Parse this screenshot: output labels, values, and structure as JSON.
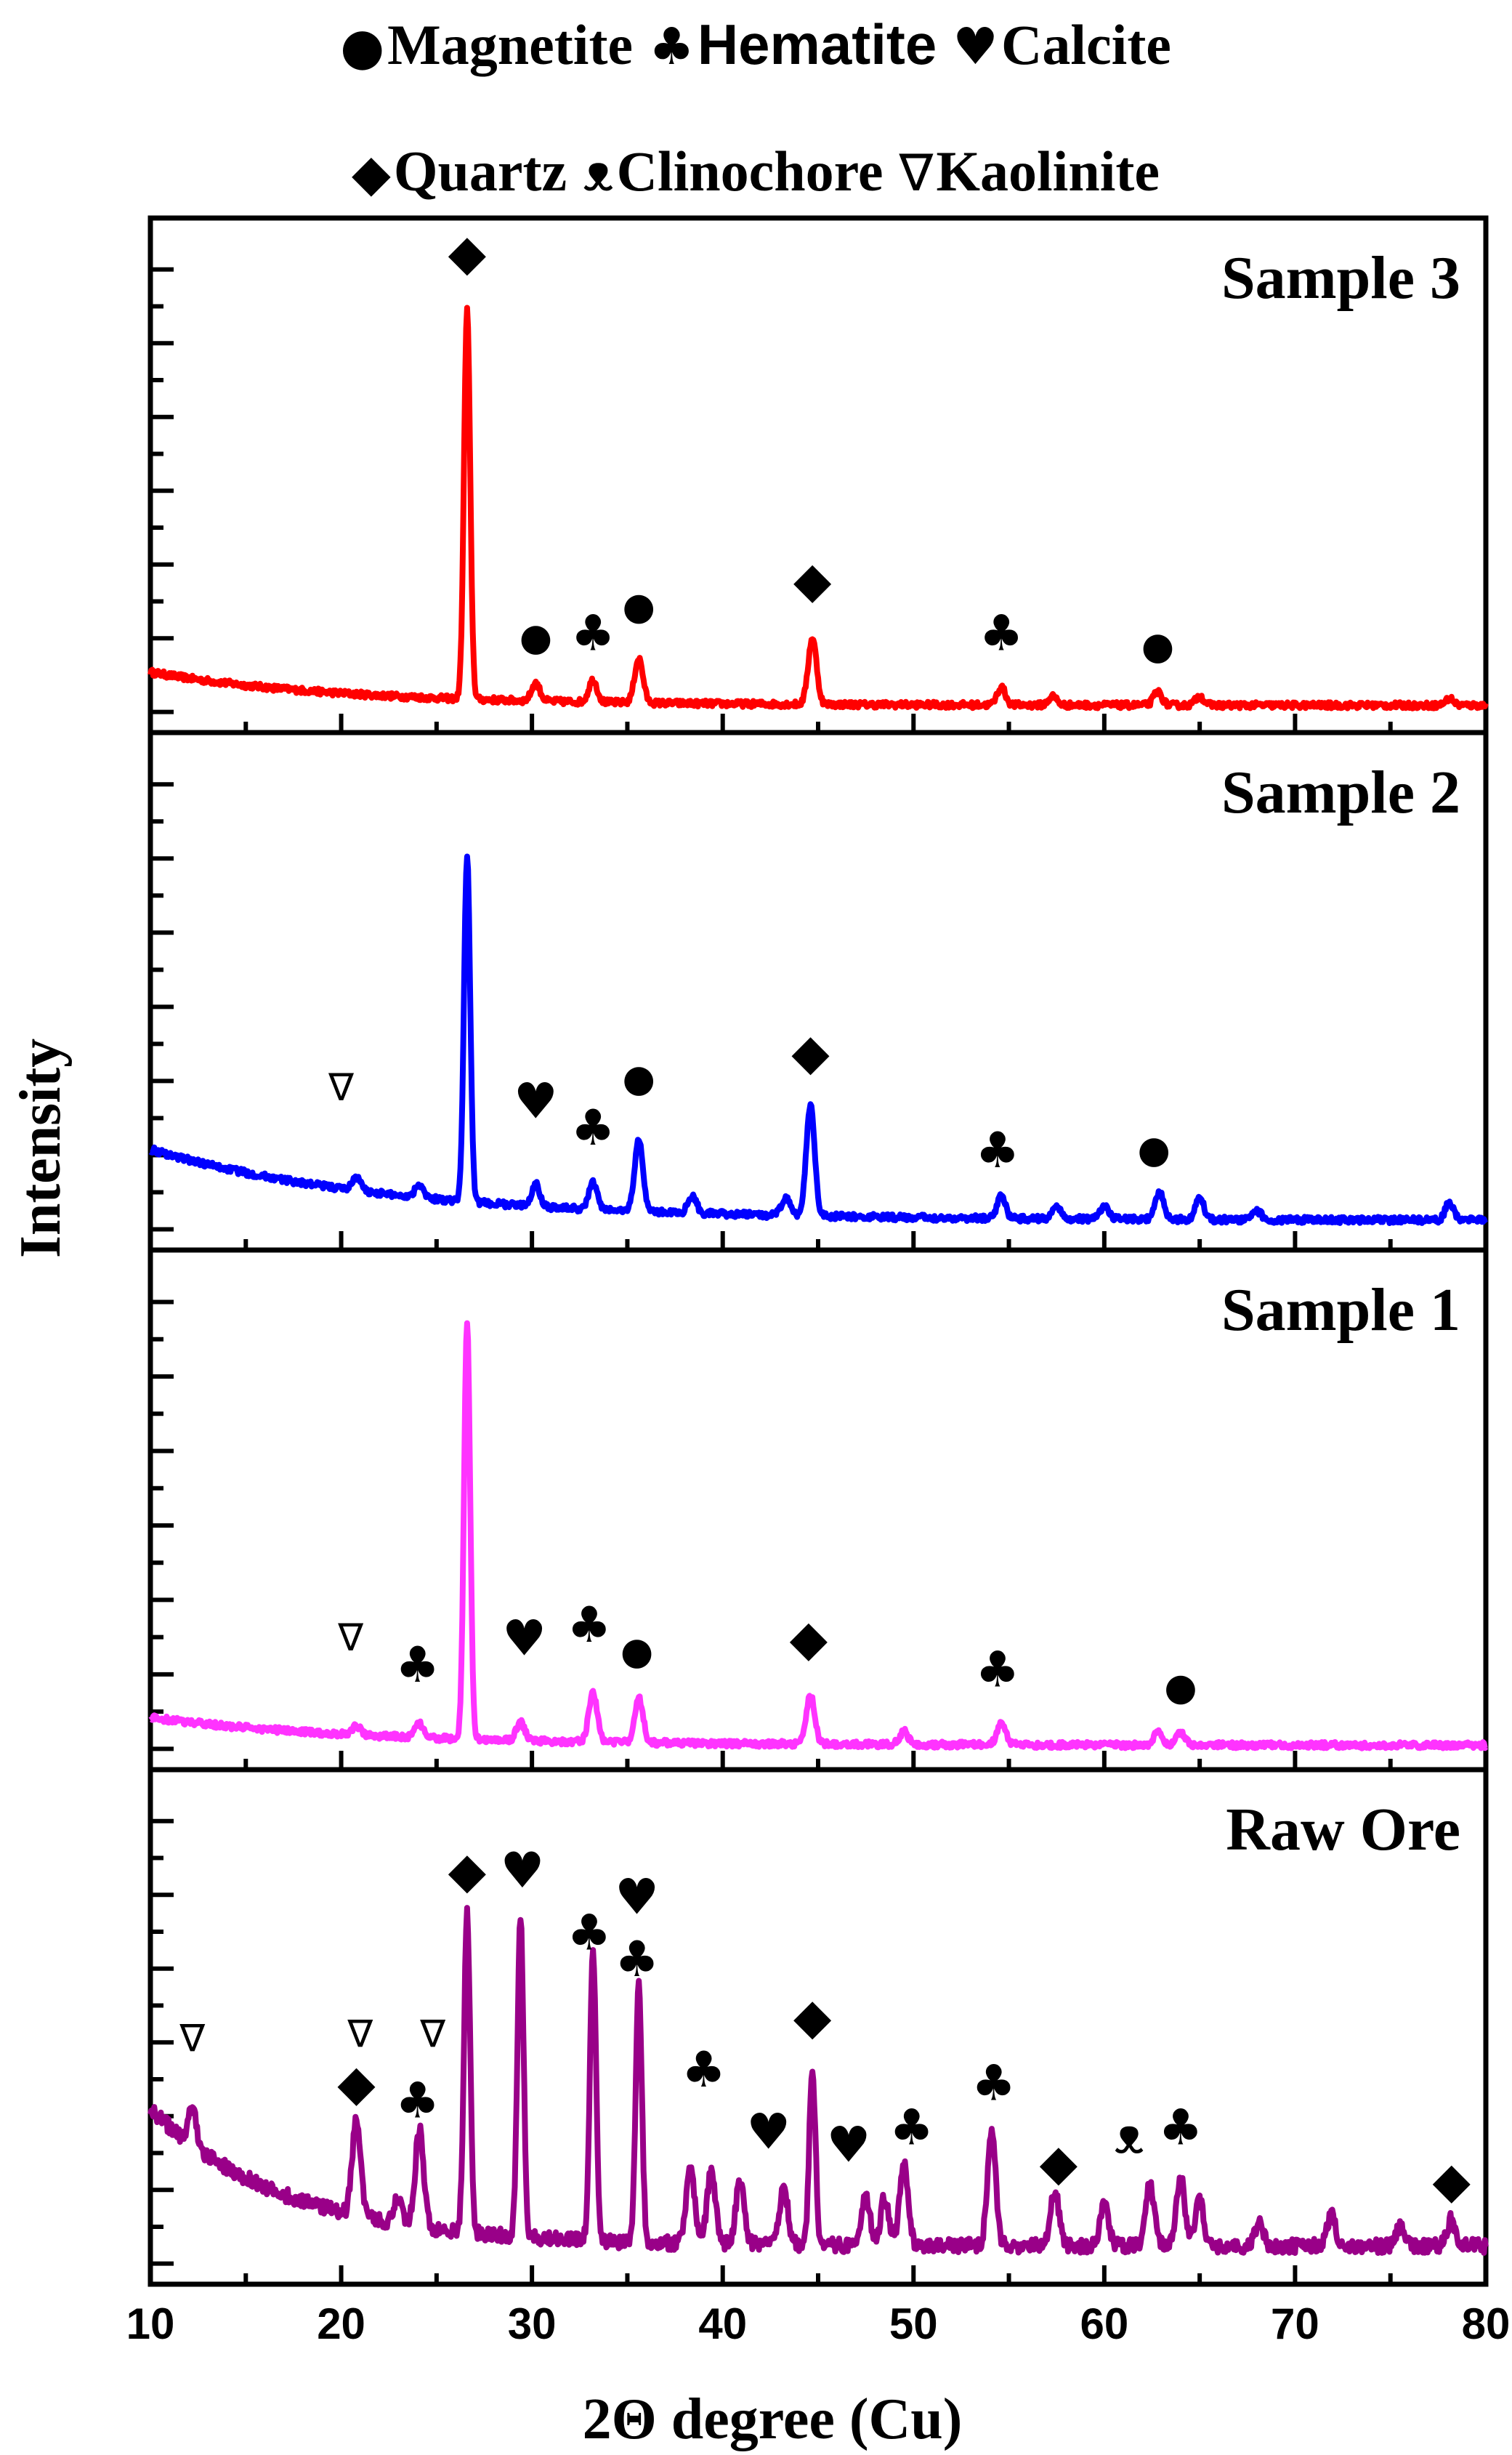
{
  "legend": [
    {
      "symbol": "●",
      "label": "Magnetite",
      "font": "serif"
    },
    {
      "symbol": "♣",
      "label": "Hematite",
      "font": "sans"
    },
    {
      "symbol": "♥",
      "label": "Calcite",
      "font": "serif"
    },
    {
      "symbol": "◆",
      "label": "Quartz",
      "font": "serif"
    },
    {
      "symbol": "ᴥ",
      "label": "Clinochore",
      "font": "serif"
    },
    {
      "symbol": "∇",
      "label": "Kaolinite",
      "font": "serif"
    }
  ],
  "chart_data": {
    "type": "line",
    "title": "",
    "xlabel": "2Θ degree (Cu)",
    "ylabel": "Intensity",
    "xlim": [
      10,
      80
    ],
    "x_ticks": [
      10,
      20,
      30,
      40,
      50,
      60,
      70,
      80
    ],
    "grid": false,
    "legend_position": "top",
    "panels": [
      {
        "name": "Sample 3",
        "color": "#ff0000",
        "ylim": [
          0,
          100
        ],
        "baseline_start": 9,
        "baseline_end": 1.5,
        "decay": 0.1,
        "peaks": [
          [
            26.6,
            88
          ],
          [
            30.2,
            4
          ],
          [
            33.2,
            5
          ],
          [
            35.6,
            10
          ],
          [
            44.7,
            15
          ],
          [
            54.6,
            4
          ],
          [
            57.3,
            2
          ],
          [
            62.8,
            3
          ],
          [
            65.0,
            2
          ],
          [
            78.1,
            1.5
          ]
        ],
        "markers": [
          {
            "symbol": "◆",
            "x": 26.6,
            "y": 100
          },
          {
            "symbol": "●",
            "x": 30.2,
            "y": 14
          },
          {
            "symbol": "♣",
            "x": 33.2,
            "y": 14
          },
          {
            "symbol": "●",
            "x": 35.6,
            "y": 21
          },
          {
            "symbol": "◆",
            "x": 44.7,
            "y": 26
          },
          {
            "symbol": "♣",
            "x": 54.6,
            "y": 14
          },
          {
            "symbol": "●",
            "x": 62.8,
            "y": 12
          }
        ]
      },
      {
        "name": "Sample 2",
        "color": "#0000ff",
        "ylim": [
          0,
          100
        ],
        "baseline_start": 18,
        "baseline_end": 2,
        "decay": 0.08,
        "peaks": [
          [
            20.8,
            3
          ],
          [
            24.1,
            3
          ],
          [
            26.6,
            78
          ],
          [
            30.2,
            5
          ],
          [
            33.2,
            6
          ],
          [
            35.6,
            16
          ],
          [
            38.4,
            4
          ],
          [
            43.3,
            4
          ],
          [
            44.6,
            25
          ],
          [
            54.6,
            5
          ],
          [
            57.5,
            3
          ],
          [
            60.0,
            3
          ],
          [
            62.9,
            6
          ],
          [
            65.0,
            5
          ],
          [
            68.0,
            2
          ],
          [
            78.1,
            4
          ]
        ],
        "markers": [
          {
            "symbol": "∇",
            "x": 20.0,
            "y": 29
          },
          {
            "symbol": "♥",
            "x": 30.2,
            "y": 25
          },
          {
            "symbol": "♣",
            "x": 33.2,
            "y": 19
          },
          {
            "symbol": "●",
            "x": 35.6,
            "y": 31
          },
          {
            "symbol": "◆",
            "x": 44.6,
            "y": 36
          },
          {
            "symbol": "♣",
            "x": 54.4,
            "y": 14
          },
          {
            "symbol": "●",
            "x": 62.6,
            "y": 15
          }
        ]
      },
      {
        "name": "Sample 1",
        "color": "#ff33ff",
        "ylim": [
          0,
          100
        ],
        "baseline_start": 7,
        "baseline_end": 0.8,
        "decay": 0.09,
        "peaks": [
          [
            20.8,
            2
          ],
          [
            24.1,
            3
          ],
          [
            26.6,
            93
          ],
          [
            29.4,
            4
          ],
          [
            33.2,
            11
          ],
          [
            35.6,
            10
          ],
          [
            44.6,
            11
          ],
          [
            49.5,
            3
          ],
          [
            54.6,
            5
          ],
          [
            62.8,
            3
          ],
          [
            64.0,
            3
          ]
        ],
        "markers": [
          {
            "symbol": "∇",
            "x": 20.5,
            "y": 22
          },
          {
            "symbol": "♣",
            "x": 24.0,
            "y": 15
          },
          {
            "symbol": "♥",
            "x": 29.6,
            "y": 21
          },
          {
            "symbol": "♣",
            "x": 33.0,
            "y": 24
          },
          {
            "symbol": "●",
            "x": 35.5,
            "y": 19
          },
          {
            "symbol": "◆",
            "x": 44.5,
            "y": 21
          },
          {
            "symbol": "♣",
            "x": 54.4,
            "y": 14
          },
          {
            "symbol": "●",
            "x": 64.0,
            "y": 11
          }
        ]
      },
      {
        "name": "Raw Ore",
        "color": "#990088",
        "ylim": [
          0,
          100
        ],
        "baseline_start": 35,
        "baseline_end": 4,
        "decay": 0.14,
        "peaks": [
          [
            12.2,
            8
          ],
          [
            20.8,
            22
          ],
          [
            23.0,
            6
          ],
          [
            24.1,
            22
          ],
          [
            26.6,
            72
          ],
          [
            29.4,
            72
          ],
          [
            33.2,
            65
          ],
          [
            35.6,
            58
          ],
          [
            38.3,
            17
          ],
          [
            39.4,
            16
          ],
          [
            40.9,
            14
          ],
          [
            43.2,
            13
          ],
          [
            44.7,
            40
          ],
          [
            47.5,
            11
          ],
          [
            48.5,
            11
          ],
          [
            49.5,
            19
          ],
          [
            54.1,
            25
          ],
          [
            57.4,
            13
          ],
          [
            60.0,
            10
          ],
          [
            62.4,
            14
          ],
          [
            64.0,
            16
          ],
          [
            65.0,
            10
          ],
          [
            68.1,
            5
          ],
          [
            71.9,
            7
          ],
          [
            75.5,
            4
          ],
          [
            78.2,
            6
          ]
        ],
        "markers": [
          {
            "symbol": "∇",
            "x": 12.2,
            "y": 48
          },
          {
            "symbol": "∇",
            "x": 21.0,
            "y": 49
          },
          {
            "symbol": "∇",
            "x": 24.8,
            "y": 49
          },
          {
            "symbol": "◆",
            "x": 20.8,
            "y": 37
          },
          {
            "symbol": "♣",
            "x": 24.0,
            "y": 33
          },
          {
            "symbol": "◆",
            "x": 26.6,
            "y": 85
          },
          {
            "symbol": "♥",
            "x": 29.5,
            "y": 85
          },
          {
            "symbol": "♣",
            "x": 33.0,
            "y": 71
          },
          {
            "symbol": "♥",
            "x": 35.5,
            "y": 79
          },
          {
            "symbol": "♣",
            "x": 35.5,
            "y": 65
          },
          {
            "symbol": "♣",
            "x": 39.0,
            "y": 40
          },
          {
            "symbol": "◆",
            "x": 44.7,
            "y": 52
          },
          {
            "symbol": "♥",
            "x": 42.4,
            "y": 26
          },
          {
            "symbol": "♥",
            "x": 46.6,
            "y": 23
          },
          {
            "symbol": "♣",
            "x": 49.9,
            "y": 27
          },
          {
            "symbol": "♣",
            "x": 54.2,
            "y": 37
          },
          {
            "symbol": "◆",
            "x": 57.6,
            "y": 19
          },
          {
            "symbol": "ᴥ",
            "x": 61.3,
            "y": 25
          },
          {
            "symbol": "♣",
            "x": 64.0,
            "y": 27
          },
          {
            "symbol": "◆",
            "x": 78.2,
            "y": 15
          }
        ]
      }
    ]
  }
}
